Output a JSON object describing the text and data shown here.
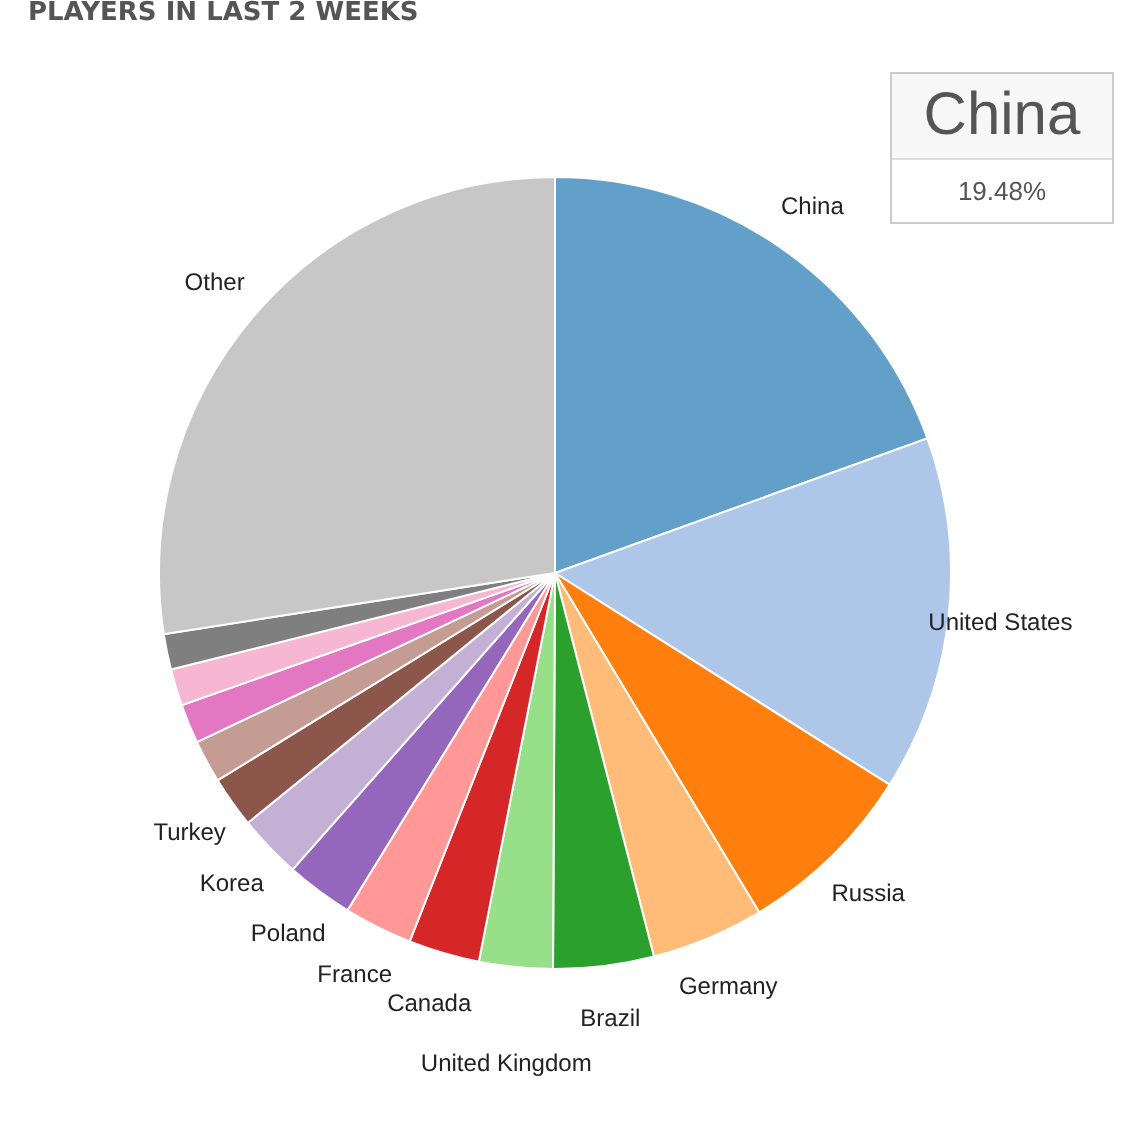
{
  "chart_data": {
    "type": "pie",
    "title": "PLAYERS IN LAST 2 WEEKS",
    "categories": [
      "China",
      "United States",
      "Russia",
      "Germany",
      "Brazil",
      "United Kingdom",
      "Canada",
      "France",
      "Poland",
      "Korea",
      "Turkey",
      null,
      null,
      null,
      null,
      "Other"
    ],
    "values": [
      19.48,
      14.5,
      7.4,
      4.6,
      4.1,
      3.0,
      2.9,
      2.8,
      2.75,
      2.6,
      2.1,
      1.75,
      1.6,
      1.5,
      1.45,
      27.47
    ],
    "colors": [
      "#62a0ca",
      "#aec7e8",
      "#ff7f0e",
      "#ffbb78",
      "#2ca02c",
      "#98df8a",
      "#d62728",
      "#ff9896",
      "#9467bd",
      "#c5b0d5",
      "#8c564b",
      "#c49c94",
      "#e377c2",
      "#f7b6d2",
      "#7f7f7f",
      "#c7c7c7"
    ],
    "annotations": [
      "19.48%"
    ],
    "legend": false
  }
}
